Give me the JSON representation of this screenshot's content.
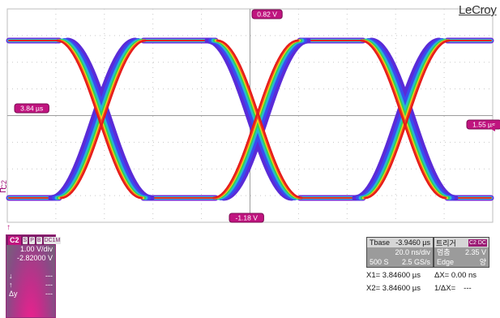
{
  "screen": {
    "brand": "LeCroy",
    "markers": {
      "top": "0.82 V",
      "bottom": "-1.18 V",
      "left": "3.84 µs",
      "right": "1.55 µs"
    },
    "channel_side_label": "C2"
  },
  "channel_panel": {
    "label": "C2",
    "badges": [
      "S",
      "P",
      "B",
      "DC1M"
    ],
    "vdiv": "1.00 V/div",
    "offset": "-2.82000 V",
    "rows": [
      {
        "sym": "↓",
        "val": "---"
      },
      {
        "sym": "↑",
        "val": "---"
      },
      {
        "sym": "Δy",
        "val": "---"
      }
    ]
  },
  "timebase_panel": {
    "title": "Tbase",
    "delay": "-3.9460 µs",
    "tdiv": "20.0 ns/div",
    "samples": "500 S",
    "rate": "2.5 GS/s"
  },
  "trigger_panel": {
    "title": "트리거",
    "badge": "C2 DC",
    "mode": "멈춤",
    "level": "2.35 V",
    "type": "Edge",
    "slope": "양"
  },
  "cursors": {
    "x1": "X1= 3.84600 µs",
    "dx": "ΔX= 0.00 ns",
    "x2": "X2= 3.84600 µs",
    "inv_dx": "1/ΔX=",
    "inv_val": "---"
  },
  "colors": {
    "grid": "#c8c8c8",
    "trace_magenta": "#c0147f",
    "panel_magenta": "#9a2b7b"
  }
}
